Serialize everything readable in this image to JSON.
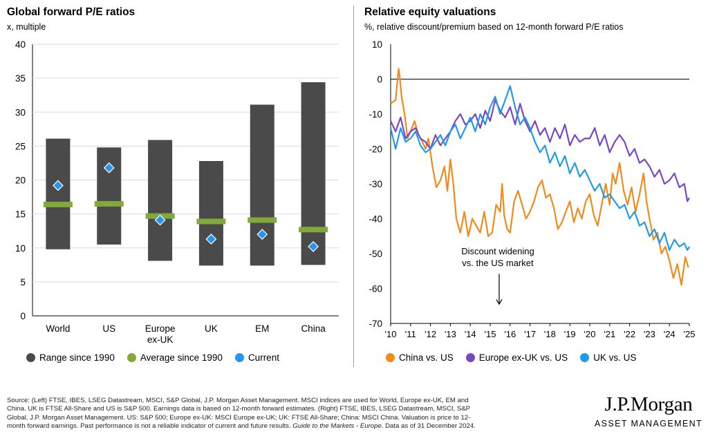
{
  "chart_data": [
    {
      "type": "bar",
      "title": "Global forward P/E ratios",
      "subtitle": "x, multiple",
      "ylim": [
        0,
        40
      ],
      "yticks": [
        0,
        5,
        10,
        15,
        20,
        25,
        30,
        35,
        40
      ],
      "categories": [
        "World",
        "US",
        "Europe\nex-UK",
        "UK",
        "EM",
        "China"
      ],
      "series": [
        {
          "name": "Range since 1990",
          "color": "#4a4a4a",
          "low": [
            9.8,
            10.5,
            8.1,
            7.4,
            7.4,
            7.5
          ],
          "high": [
            26.1,
            24.8,
            25.9,
            22.8,
            31.1,
            34.4
          ]
        },
        {
          "name": "Average since 1990",
          "color": "#82a93c",
          "values": [
            16.4,
            16.5,
            14.7,
            13.9,
            14.1,
            12.7
          ]
        },
        {
          "name": "Current",
          "color": "#2196f3",
          "values": [
            19.2,
            21.8,
            14.1,
            11.3,
            12.0,
            10.2
          ]
        }
      ],
      "legend": [
        "Range since 1990",
        "Average since 1990",
        "Current"
      ]
    },
    {
      "type": "line",
      "title": "Relative equity valuations",
      "subtitle": "%, relative discount/premium based on 12-month forward P/E ratios",
      "ylim": [
        -70,
        10
      ],
      "yticks": [
        10,
        0,
        -10,
        -20,
        -30,
        -40,
        -50,
        -60,
        -70
      ],
      "xlim": [
        2010,
        2025
      ],
      "xticks": [
        "'10",
        "'11",
        "'12",
        "'13",
        "'14",
        "'15",
        "'16",
        "'17",
        "'18",
        "'19",
        "'20",
        "'21",
        "'22",
        "'23",
        "'24",
        "'25"
      ],
      "annotation": {
        "text": [
          "Discount widening",
          "vs. the US market"
        ],
        "x": 2015.45,
        "y_from": -55.8,
        "y_to": -64.5
      },
      "series": [
        {
          "name": "China vs. US",
          "color": "#f28a1a",
          "x": [
            2010.0,
            2010.25,
            2010.4,
            2010.45,
            2010.55,
            2010.7,
            2010.85,
            2011.0,
            2011.2,
            2011.4,
            2011.6,
            2011.75,
            2011.9,
            2012.1,
            2012.3,
            2012.5,
            2012.7,
            2012.85,
            2013.0,
            2013.15,
            2013.3,
            2013.5,
            2013.7,
            2013.9,
            2014.1,
            2014.3,
            2014.5,
            2014.7,
            2014.9,
            2015.1,
            2015.3,
            2015.5,
            2015.6,
            2015.7,
            2015.85,
            2016.0,
            2016.2,
            2016.4,
            2016.6,
            2016.8,
            2017.0,
            2017.2,
            2017.4,
            2017.6,
            2017.8,
            2018.0,
            2018.2,
            2018.4,
            2018.6,
            2018.8,
            2019.0,
            2019.2,
            2019.4,
            2019.6,
            2019.8,
            2020.0,
            2020.2,
            2020.4,
            2020.6,
            2020.8,
            2021.0,
            2021.15,
            2021.3,
            2021.5,
            2021.7,
            2021.9,
            2022.1,
            2022.3,
            2022.5,
            2022.7,
            2022.85,
            2023.0,
            2023.2,
            2023.4,
            2023.6,
            2023.8,
            2024.0,
            2024.2,
            2024.4,
            2024.6,
            2024.8,
            2024.95
          ],
          "y": [
            -7,
            -6,
            3,
            1,
            -5,
            -10,
            -17,
            -15,
            -12,
            -16,
            -18,
            -20,
            -17,
            -25,
            -31,
            -29,
            -25,
            -32,
            -23,
            -30,
            -40,
            -44,
            -38,
            -45,
            -40,
            -42,
            -44,
            -38,
            -45,
            -44,
            -36,
            -38,
            -30,
            -39,
            -43,
            -44,
            -35,
            -32,
            -36,
            -40,
            -38,
            -35,
            -31,
            -29,
            -34,
            -33,
            -37,
            -43,
            -41,
            -38,
            -35,
            -41,
            -37,
            -40,
            -35,
            -33,
            -39,
            -42,
            -36,
            -30,
            -36,
            -27,
            -30,
            -24,
            -32,
            -36,
            -31,
            -38,
            -33,
            -27,
            -35,
            -40,
            -46,
            -44,
            -50,
            -48,
            -52,
            -57,
            -53,
            -59,
            -51,
            -54
          ]
        },
        {
          "name": "Europe ex-UK vs. US",
          "color": "#7b46c4",
          "x": [
            2010.0,
            2010.25,
            2010.5,
            2010.75,
            2011.0,
            2011.25,
            2011.5,
            2011.75,
            2012.0,
            2012.25,
            2012.5,
            2012.75,
            2013.0,
            2013.25,
            2013.5,
            2013.75,
            2014.0,
            2014.25,
            2014.5,
            2014.75,
            2015.0,
            2015.25,
            2015.5,
            2015.75,
            2016.0,
            2016.25,
            2016.5,
            2016.75,
            2017.0,
            2017.25,
            2017.5,
            2017.75,
            2018.0,
            2018.25,
            2018.5,
            2018.75,
            2019.0,
            2019.25,
            2019.5,
            2019.75,
            2020.0,
            2020.25,
            2020.5,
            2020.75,
            2021.0,
            2021.25,
            2021.5,
            2021.75,
            2022.0,
            2022.25,
            2022.5,
            2022.75,
            2023.0,
            2023.25,
            2023.5,
            2023.75,
            2024.0,
            2024.25,
            2024.5,
            2024.75,
            2024.9,
            2025.0
          ],
          "y": [
            -12,
            -15,
            -11,
            -17,
            -15,
            -14,
            -17,
            -18,
            -20,
            -16,
            -19,
            -17,
            -15,
            -12,
            -10,
            -13,
            -12,
            -10,
            -14,
            -9,
            -12,
            -6,
            -9,
            -11,
            -8,
            -13,
            -7,
            -12,
            -15,
            -12,
            -16,
            -14,
            -18,
            -14,
            -17,
            -13,
            -19,
            -16,
            -18,
            -17,
            -17,
            -14,
            -19,
            -16,
            -21,
            -18,
            -16,
            -18,
            -22,
            -20,
            -24,
            -23,
            -25,
            -28,
            -26,
            -30,
            -29,
            -27,
            -31,
            -30,
            -35,
            -34
          ]
        },
        {
          "name": "UK vs. US",
          "color": "#1e9be8",
          "x": [
            2010.0,
            2010.25,
            2010.5,
            2010.75,
            2011.0,
            2011.25,
            2011.5,
            2011.75,
            2012.0,
            2012.25,
            2012.5,
            2012.75,
            2013.0,
            2013.25,
            2013.5,
            2013.75,
            2014.0,
            2014.25,
            2014.5,
            2014.75,
            2015.0,
            2015.25,
            2015.5,
            2015.75,
            2016.0,
            2016.25,
            2016.5,
            2016.75,
            2017.0,
            2017.25,
            2017.5,
            2017.75,
            2018.0,
            2018.25,
            2018.5,
            2018.75,
            2019.0,
            2019.25,
            2019.5,
            2019.75,
            2020.0,
            2020.25,
            2020.5,
            2020.75,
            2021.0,
            2021.25,
            2021.5,
            2021.75,
            2022.0,
            2022.25,
            2022.5,
            2022.75,
            2023.0,
            2023.25,
            2023.5,
            2023.75,
            2024.0,
            2024.25,
            2024.5,
            2024.75,
            2024.9,
            2025.0
          ],
          "y": [
            -14,
            -20,
            -14,
            -18,
            -17,
            -15,
            -19,
            -21,
            -20,
            -18,
            -16,
            -19,
            -15,
            -13,
            -17,
            -14,
            -11,
            -15,
            -10,
            -13,
            -8,
            -5,
            -10,
            -6,
            -2,
            -8,
            -13,
            -11,
            -14,
            -18,
            -21,
            -19,
            -24,
            -21,
            -25,
            -22,
            -27,
            -24,
            -28,
            -26,
            -29,
            -32,
            -30,
            -34,
            -33,
            -35,
            -37,
            -36,
            -40,
            -38,
            -42,
            -41,
            -45,
            -43,
            -47,
            -44,
            -49,
            -46,
            -48,
            -47,
            -49,
            -48
          ]
        }
      ],
      "legend": [
        "China vs. US",
        "Europe ex-UK vs. US",
        "UK vs. US"
      ]
    }
  ],
  "footer": {
    "line1": "Source: (Left) FTSE, IBES, LSEG Datastream, MSCI, S&P Global, J.P. Morgan Asset Management. MSCI indices are used for World, Europe ex-UK, EM and",
    "line2": "China. UK is FTSE All-Share and US is S&P 500. Earnings data is based on 12-month forward estimates. (Right) FTSE, IBES, LSEG Datastream, MSCI, S&P",
    "line3": "Global, J.P. Morgan Asset Management. US: S&P 500; Europe ex-UK: MSCI Europe ex-UK; UK: FTSE All-Share; China: MSCI China. Valuation is price to 12-",
    "line4_start": "month forward earnings. Past performance is not a reliable indicator of current and future results.",
    "line4_italic": "Guide to the Markets - Europe",
    "line4_end": ". Data as of 31 December 2024."
  },
  "logo": {
    "main": "J.P.Morgan",
    "sub": "ASSET MANAGEMENT"
  }
}
